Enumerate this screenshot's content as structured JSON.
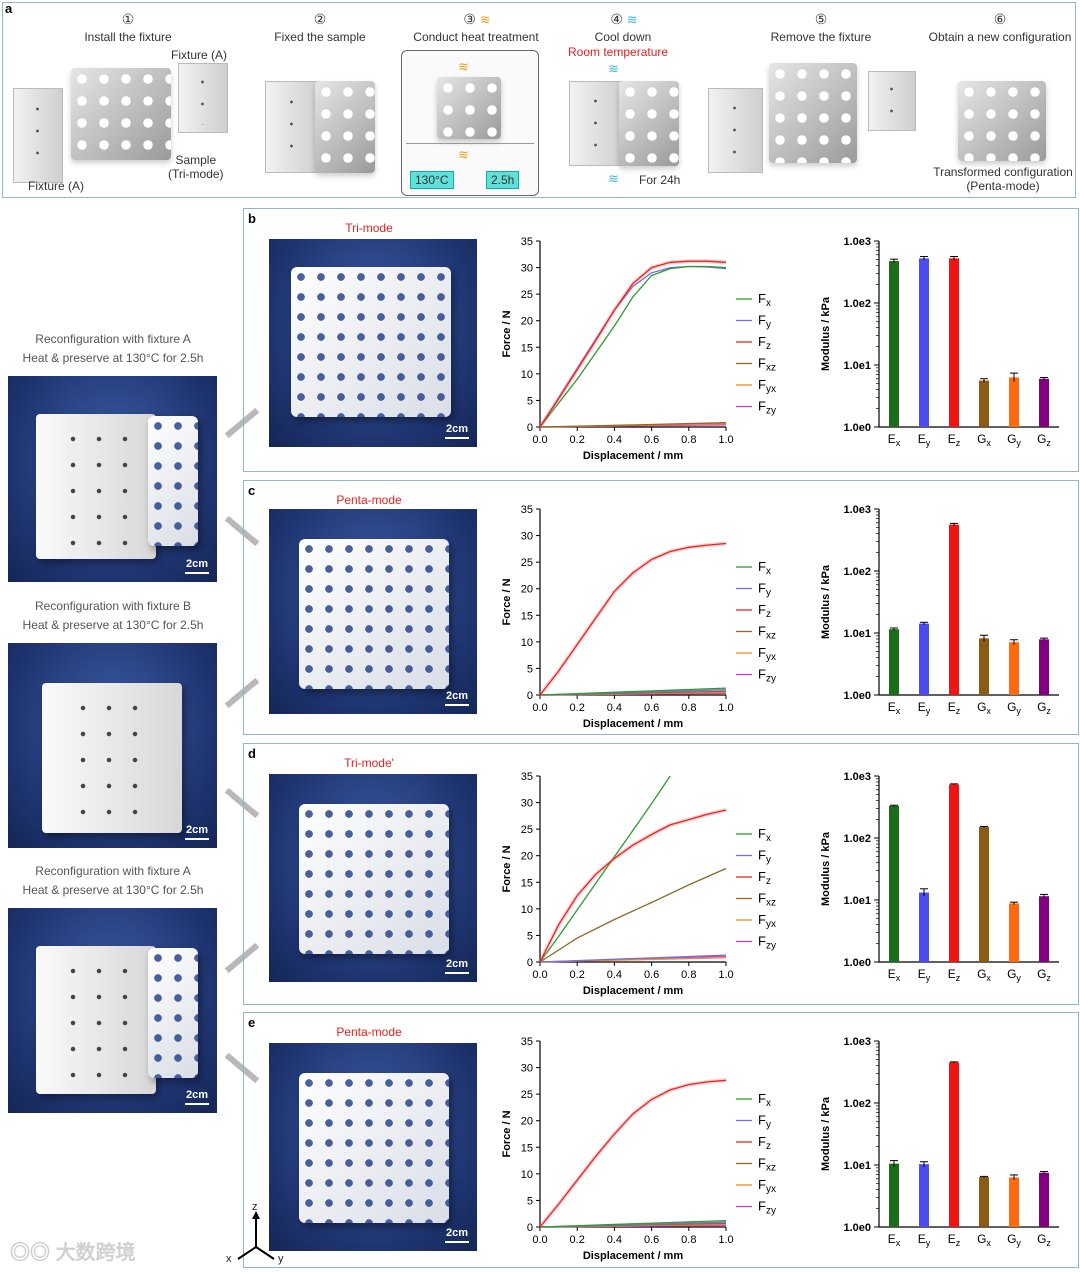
{
  "panel_a": {
    "label": "a",
    "steps": [
      {
        "num": "①",
        "label": "Install the fixture"
      },
      {
        "num": "②",
        "label": "Fixed the sample"
      },
      {
        "num": "③",
        "label": "Conduct heat treatment"
      },
      {
        "num": "④",
        "label": "Cool down"
      },
      {
        "num": "⑤",
        "label": "Remove the fixture"
      },
      {
        "num": "⑥",
        "label": "Obtain a new configuration"
      }
    ],
    "fixture_top": "Fixture (A)",
    "fixture_bottom": "Fixture (A)",
    "sample_label": "Sample",
    "sample_mode": "(Tri-mode)",
    "heat_temp": "130°C",
    "heat_time": "2.5h",
    "room_temp": "Room temperature",
    "cool_time": "For 24h",
    "transformed_label": "Transformed configuration",
    "transformed_mode": "(Penta-mode)"
  },
  "side_captions": [
    {
      "line1": "Reconfiguration with fixture A",
      "line2": "Heat & preserve at 130°C for 2.5h"
    },
    {
      "line1": "Reconfiguration with fixture B",
      "line2": "Heat & preserve at 130°C for 2.5h"
    },
    {
      "line1": "Reconfiguration with fixture A",
      "line2": "Heat & preserve at 130°C for 2.5h"
    }
  ],
  "scale_label": "2cm",
  "axis_triad": {
    "z": "z",
    "x": "x",
    "y": "y"
  },
  "watermark": "大数跨境",
  "rows": [
    {
      "label": "b",
      "mode": "Tri-mode"
    },
    {
      "label": "c",
      "mode": "Penta-mode"
    },
    {
      "label": "d",
      "mode": "Tri-mode'"
    },
    {
      "label": "e",
      "mode": "Penta-mode"
    }
  ],
  "legend": [
    "Fx",
    "Fy",
    "Fz",
    "Fxz",
    "Fyx",
    "Fzy"
  ],
  "legend_subs": [
    [
      "F",
      "x"
    ],
    [
      "F",
      "y"
    ],
    [
      "F",
      "z"
    ],
    [
      "F",
      "xz"
    ],
    [
      "F",
      "yx"
    ],
    [
      "F",
      "zy"
    ]
  ],
  "moduli_labels": [
    [
      "E",
      "x"
    ],
    [
      "E",
      "y"
    ],
    [
      "E",
      "z"
    ],
    [
      "G",
      "x"
    ],
    [
      "G",
      "y"
    ],
    [
      "G",
      "z"
    ]
  ],
  "colors": {
    "Fx": "#2e9a2e",
    "Fy": "#7070e0",
    "Fz": "#e02828",
    "Fxz": "#8b6a2a",
    "Fyx": "#f08c28",
    "Fzy": "#d040d0",
    "bars": [
      "#1a6e1a",
      "#4b4bf0",
      "#f01414",
      "#8b5a14",
      "#ff6a10",
      "#800080"
    ],
    "mode_text": "#e02020"
  },
  "chart_data": [
    {
      "type": "line",
      "title": "",
      "xlabel": "Displacement / mm",
      "ylabel": "Force / N",
      "xlim": [
        0,
        1.0
      ],
      "ylim": [
        0,
        35
      ],
      "xticks": [
        "0.0",
        "0.2",
        "0.4",
        "0.6",
        "0.8",
        "1.0"
      ],
      "yticks": [
        "0",
        "5",
        "10",
        "15",
        "20",
        "25",
        "30",
        "35"
      ],
      "series": [
        {
          "name": "Fx",
          "x": [
            0,
            0.1,
            0.2,
            0.3,
            0.4,
            0.5,
            0.6,
            0.7,
            0.8,
            0.9,
            1.0
          ],
          "y": [
            0,
            4.5,
            9,
            14,
            19,
            24.5,
            28.5,
            29.8,
            30.2,
            30.2,
            30.0
          ]
        },
        {
          "name": "Fy",
          "x": [
            0,
            0.1,
            0.2,
            0.3,
            0.4,
            0.5,
            0.6,
            0.7,
            0.8,
            0.9,
            1.0
          ],
          "y": [
            0,
            5.5,
            11,
            16.5,
            22,
            26.5,
            29,
            30,
            30.2,
            30.1,
            29.8
          ]
        },
        {
          "name": "Fz",
          "x": [
            0,
            0.1,
            0.2,
            0.3,
            0.4,
            0.5,
            0.6,
            0.7,
            0.8,
            0.9,
            1.0
          ],
          "y": [
            0,
            5.3,
            10.8,
            16.3,
            22,
            27,
            30,
            31,
            31.2,
            31.2,
            31.0
          ]
        },
        {
          "name": "Fxz",
          "x": [
            0,
            0.5,
            1.0
          ],
          "y": [
            0,
            0.4,
            0.8
          ]
        },
        {
          "name": "Fyx",
          "x": [
            0,
            0.5,
            1.0
          ],
          "y": [
            0,
            0.3,
            0.6
          ]
        },
        {
          "name": "Fzy",
          "x": [
            0,
            0.5,
            1.0
          ],
          "y": [
            0,
            0.2,
            0.4
          ]
        }
      ]
    },
    {
      "type": "bar",
      "ylabel": "Modulus / kPa",
      "yscale": "log",
      "yticks": [
        "1.0e0",
        "1.0e1",
        "1.0e2",
        "1.0e3"
      ],
      "categories": [
        "Ex",
        "Ey",
        "Ez",
        "Gx",
        "Gy",
        "Gz"
      ],
      "values": [
        475,
        525,
        525,
        5.6,
        6.3,
        6.0
      ],
      "errors": [
        0.03,
        0.03,
        0.03,
        0.03,
        0.07,
        0.02
      ]
    },
    {
      "type": "line",
      "xlabel": "Displacement / mm",
      "ylabel": "Force / N",
      "xlim": [
        0,
        1.0
      ],
      "ylim": [
        0,
        35
      ],
      "xticks": [
        "0.0",
        "0.2",
        "0.4",
        "0.6",
        "0.8",
        "1.0"
      ],
      "yticks": [
        "0",
        "5",
        "10",
        "15",
        "20",
        "25",
        "30",
        "35"
      ],
      "series": [
        {
          "name": "Fx",
          "x": [
            0,
            1.0
          ],
          "y": [
            0,
            1.3
          ]
        },
        {
          "name": "Fy",
          "x": [
            0,
            1.0
          ],
          "y": [
            0,
            1.0
          ]
        },
        {
          "name": "Fz",
          "x": [
            0,
            0.1,
            0.2,
            0.3,
            0.4,
            0.5,
            0.6,
            0.7,
            0.8,
            0.9,
            1.0
          ],
          "y": [
            0,
            4.5,
            9.5,
            14.5,
            19.5,
            23,
            25.5,
            27,
            27.8,
            28.2,
            28.5
          ]
        },
        {
          "name": "Fxz",
          "x": [
            0,
            1.0
          ],
          "y": [
            0,
            0.7
          ]
        },
        {
          "name": "Fyx",
          "x": [
            0,
            1.0
          ],
          "y": [
            0,
            0.5
          ]
        },
        {
          "name": "Fzy",
          "x": [
            0,
            1.0
          ],
          "y": [
            0,
            0.3
          ]
        }
      ]
    },
    {
      "type": "bar",
      "ylabel": "Modulus / kPa",
      "yscale": "log",
      "yticks": [
        "1.0e0",
        "1.0e1",
        "1.0e2",
        "1.0e3"
      ],
      "categories": [
        "Ex",
        "Ey",
        "Ez",
        "Gx",
        "Gy",
        "Gz"
      ],
      "values": [
        11.5,
        14.2,
        560,
        8.2,
        7.1,
        7.9
      ],
      "errors": [
        0.02,
        0.02,
        0.02,
        0.05,
        0.04,
        0.02
      ]
    },
    {
      "type": "line",
      "xlabel": "Displacement / mm",
      "ylabel": "Force / N",
      "xlim": [
        0,
        1.0
      ],
      "ylim": [
        0,
        35
      ],
      "xticks": [
        "0.0",
        "0.2",
        "0.4",
        "0.6",
        "0.8",
        "1.0"
      ],
      "yticks": [
        "0",
        "5",
        "10",
        "15",
        "20",
        "25",
        "30",
        "35"
      ],
      "series": [
        {
          "name": "Fx",
          "x": [
            0,
            0.1,
            0.2,
            0.3,
            0.4,
            0.5,
            0.6,
            0.7
          ],
          "y": [
            0,
            4.8,
            9.8,
            14.8,
            19.8,
            24.8,
            29.8,
            35
          ]
        },
        {
          "name": "Fy",
          "x": [
            0,
            1.0
          ],
          "y": [
            0,
            1.3
          ]
        },
        {
          "name": "Fz",
          "x": [
            0,
            0.1,
            0.2,
            0.3,
            0.4,
            0.5,
            0.6,
            0.7,
            0.8,
            0.9,
            1.0
          ],
          "y": [
            0,
            7,
            12.5,
            16.5,
            19.5,
            22,
            24,
            25.8,
            26.8,
            27.8,
            28.6
          ]
        },
        {
          "name": "Fxz",
          "x": [
            0,
            0.2,
            0.4,
            0.6,
            0.8,
            1.0
          ],
          "y": [
            0,
            4.5,
            8,
            11.2,
            14.5,
            17.6
          ]
        },
        {
          "name": "Fyx",
          "x": [
            0,
            1.0
          ],
          "y": [
            0,
            0.8
          ]
        },
        {
          "name": "Fzy",
          "x": [
            0,
            1.0
          ],
          "y": [
            0,
            1.1
          ]
        }
      ]
    },
    {
      "type": "bar",
      "ylabel": "Modulus / kPa",
      "yscale": "log",
      "yticks": [
        "1.0e0",
        "1.0e1",
        "1.0e2",
        "1.0e3"
      ],
      "categories": [
        "Ex",
        "Ey",
        "Ez",
        "Gx",
        "Gy",
        "Gz"
      ],
      "values": [
        330,
        13.2,
        730,
        150,
        8.8,
        11.5
      ],
      "errors": [
        0.01,
        0.06,
        0.01,
        0.01,
        0.02,
        0.03
      ]
    },
    {
      "type": "line",
      "xlabel": "Displacement / mm",
      "ylabel": "Force / N",
      "xlim": [
        0,
        1.0
      ],
      "ylim": [
        0,
        35
      ],
      "xticks": [
        "0.0",
        "0.2",
        "0.4",
        "0.6",
        "0.8",
        "1.0"
      ],
      "yticks": [
        "0",
        "5",
        "10",
        "15",
        "20",
        "25",
        "30",
        "35"
      ],
      "series": [
        {
          "name": "Fx",
          "x": [
            0,
            1.0
          ],
          "y": [
            0,
            1.2
          ]
        },
        {
          "name": "Fy",
          "x": [
            0,
            1.0
          ],
          "y": [
            0,
            0.9
          ]
        },
        {
          "name": "Fz",
          "x": [
            0,
            0.1,
            0.2,
            0.3,
            0.4,
            0.5,
            0.6,
            0.7,
            0.8,
            0.9,
            1.0
          ],
          "y": [
            0,
            4.3,
            8.8,
            13.3,
            17.5,
            21.3,
            24,
            25.8,
            26.8,
            27.3,
            27.6
          ]
        },
        {
          "name": "Fxz",
          "x": [
            0,
            1.0
          ],
          "y": [
            0,
            0.7
          ]
        },
        {
          "name": "Fyx",
          "x": [
            0,
            1.0
          ],
          "y": [
            0,
            0.5
          ]
        },
        {
          "name": "Fzy",
          "x": [
            0,
            1.0
          ],
          "y": [
            0,
            0.3
          ]
        }
      ]
    },
    {
      "type": "bar",
      "ylabel": "Modulus / kPa",
      "yscale": "log",
      "yticks": [
        "1.0e0",
        "1.0e1",
        "1.0e2",
        "1.0e3"
      ],
      "categories": [
        "Ex",
        "Ey",
        "Ez",
        "Gx",
        "Gy",
        "Gz"
      ],
      "values": [
        10.5,
        10.3,
        450,
        6.4,
        6.3,
        7.5
      ],
      "errors": [
        0.05,
        0.04,
        0.01,
        0.01,
        0.04,
        0.02
      ]
    }
  ]
}
